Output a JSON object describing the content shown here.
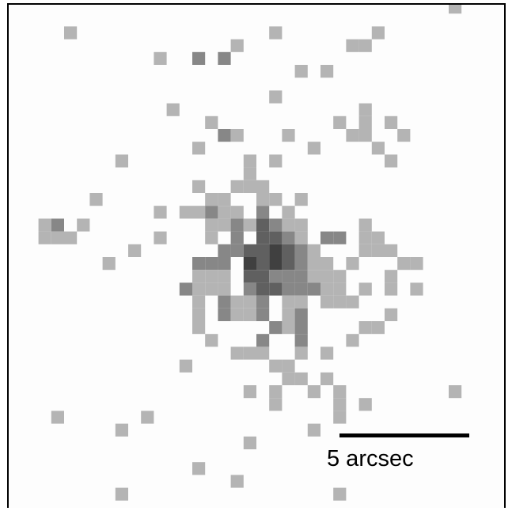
{
  "image": {
    "description_kind": "pixelated X-ray count map",
    "colors": {
      "background": "#fdfdfd",
      "frame": "#000000",
      "level1": "#b4b4b4",
      "level2": "#878787",
      "level3": "#606060",
      "level4": "#404040"
    },
    "scale_bar": {
      "label": "5 arcsec"
    }
  }
}
